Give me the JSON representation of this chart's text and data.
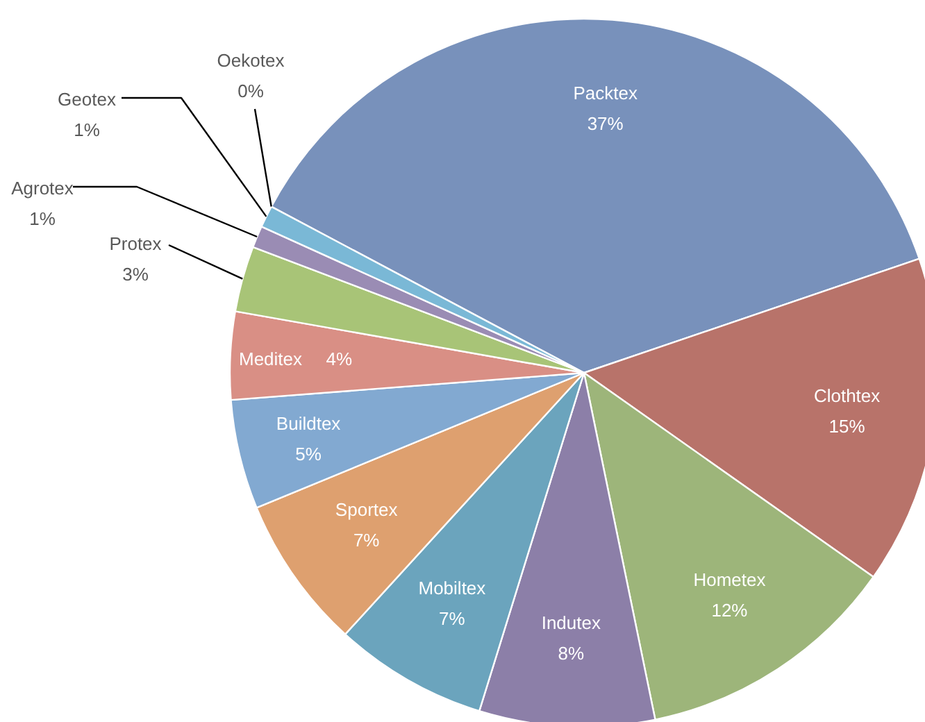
{
  "chart_data": {
    "type": "pie",
    "categories": [
      "Packtex",
      "Clothtex",
      "Hometex",
      "Indutex",
      "Mobiltex",
      "Sportex",
      "Buildtex",
      "Meditex",
      "Protex",
      "Agrotex",
      "Geotex",
      "Oekotex"
    ],
    "values": [
      37,
      15,
      12,
      8,
      7,
      7,
      5,
      4,
      3,
      1,
      1,
      0
    ],
    "colors": [
      "#7891bb",
      "#b8736a",
      "#9db57a",
      "#8c7fa8",
      "#6ba4bd",
      "#dea06f",
      "#82a9d1",
      "#d98f85",
      "#a8c477",
      "#9a8cb4",
      "#7ab8d6",
      "#f0a868"
    ],
    "value_labels": [
      "37%",
      "15%",
      "12%",
      "8%",
      "7%",
      "7%",
      "5%",
      "4%",
      "3%",
      "1%",
      "1%",
      "0%"
    ]
  }
}
